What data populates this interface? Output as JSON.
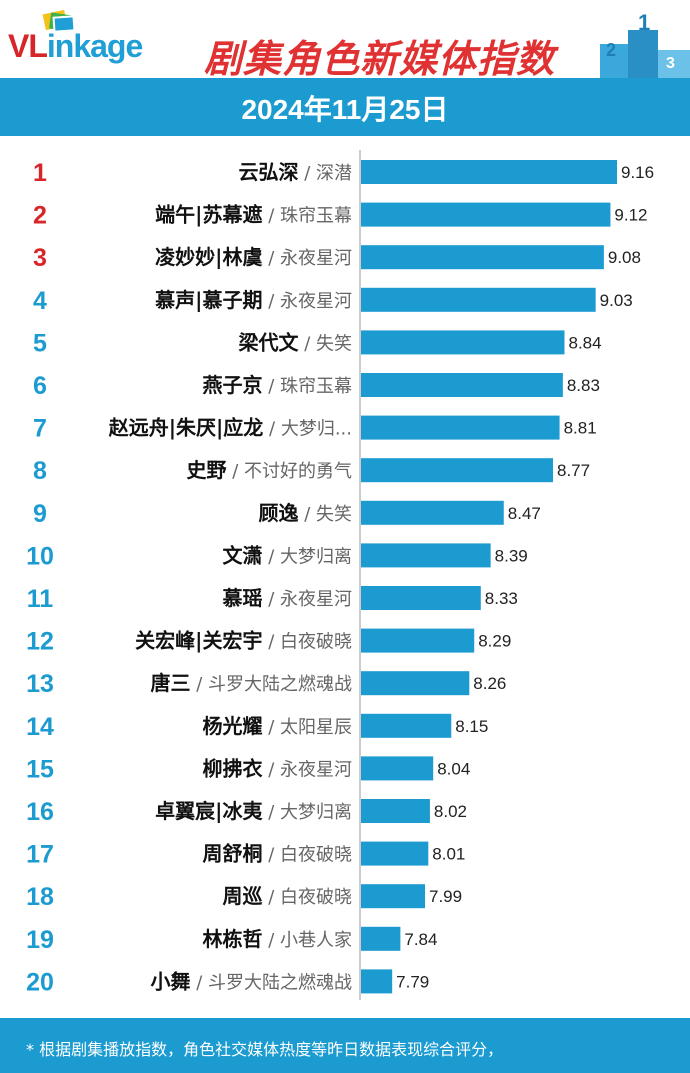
{
  "header": {
    "logo_text_part1": "VL",
    "logo_text_part2": "inkage",
    "title": "剧集角色新媒体指数",
    "date": "2024年11月25日",
    "podium_numbers": [
      "2",
      "1",
      "3"
    ]
  },
  "footer": {
    "note": "* 根据剧集播放指数，角色社交媒体热度等昨日数据表现综合评分，"
  },
  "colors": {
    "bar": "#1b9bd0",
    "rank_top3": "#d7262a",
    "rank_rest": "#1b9bd0",
    "title": "#e03232"
  },
  "chart_data": {
    "type": "bar",
    "orientation": "horizontal",
    "grid": false,
    "items": [
      {
        "rank": "1",
        "name": "云弘深",
        "show": "深潜",
        "value": 9.16,
        "label": "9.16"
      },
      {
        "rank": "2",
        "name": "端午|苏幕遮",
        "show": "珠帘玉幕",
        "value": 9.12,
        "label": "9.12"
      },
      {
        "rank": "3",
        "name": "凌妙妙|林虞",
        "show": "永夜星河",
        "value": 9.08,
        "label": "9.08"
      },
      {
        "rank": "4",
        "name": "慕声|慕子期",
        "show": "永夜星河",
        "value": 9.03,
        "label": "9.03"
      },
      {
        "rank": "5",
        "name": "梁代文",
        "show": "失笑",
        "value": 8.84,
        "label": "8.84"
      },
      {
        "rank": "6",
        "name": "燕子京",
        "show": "珠帘玉幕",
        "value": 8.83,
        "label": "8.83"
      },
      {
        "rank": "7",
        "name": "赵远舟|朱厌|应龙",
        "show": "大梦归...",
        "value": 8.81,
        "label": "8.81"
      },
      {
        "rank": "8",
        "name": "史野",
        "show": "不讨好的勇气",
        "value": 8.77,
        "label": "8.77"
      },
      {
        "rank": "9",
        "name": "顾逸",
        "show": "失笑",
        "value": 8.47,
        "label": "8.47"
      },
      {
        "rank": "10",
        "name": "文潇",
        "show": "大梦归离",
        "value": 8.39,
        "label": "8.39"
      },
      {
        "rank": "11",
        "name": "慕瑶",
        "show": "永夜星河",
        "value": 8.33,
        "label": "8.33"
      },
      {
        "rank": "12",
        "name": "关宏峰|关宏宇",
        "show": "白夜破晓",
        "value": 8.29,
        "label": "8.29"
      },
      {
        "rank": "13",
        "name": "唐三",
        "show": "斗罗大陆之燃魂战",
        "value": 8.26,
        "label": "8.26"
      },
      {
        "rank": "14",
        "name": "杨光耀",
        "show": "太阳星辰",
        "value": 8.15,
        "label": "8.15"
      },
      {
        "rank": "15",
        "name": "柳拂衣",
        "show": "永夜星河",
        "value": 8.04,
        "label": "8.04"
      },
      {
        "rank": "16",
        "name": "卓翼宸|冰夷",
        "show": "大梦归离",
        "value": 8.02,
        "label": "8.02"
      },
      {
        "rank": "17",
        "name": "周舒桐",
        "show": "白夜破晓",
        "value": 8.01,
        "label": "8.01"
      },
      {
        "rank": "18",
        "name": "周巡",
        "show": "白夜破晓",
        "value": 7.99,
        "label": "7.99"
      },
      {
        "rank": "19",
        "name": "林栋哲",
        "show": "小巷人家",
        "value": 7.84,
        "label": "7.84"
      },
      {
        "rank": "20",
        "name": "小舞",
        "show": "斗罗大陆之燃魂战",
        "value": 7.79,
        "label": "7.79"
      }
    ],
    "separator": " / ",
    "xlim": [
      7.6,
      9.16
    ]
  }
}
